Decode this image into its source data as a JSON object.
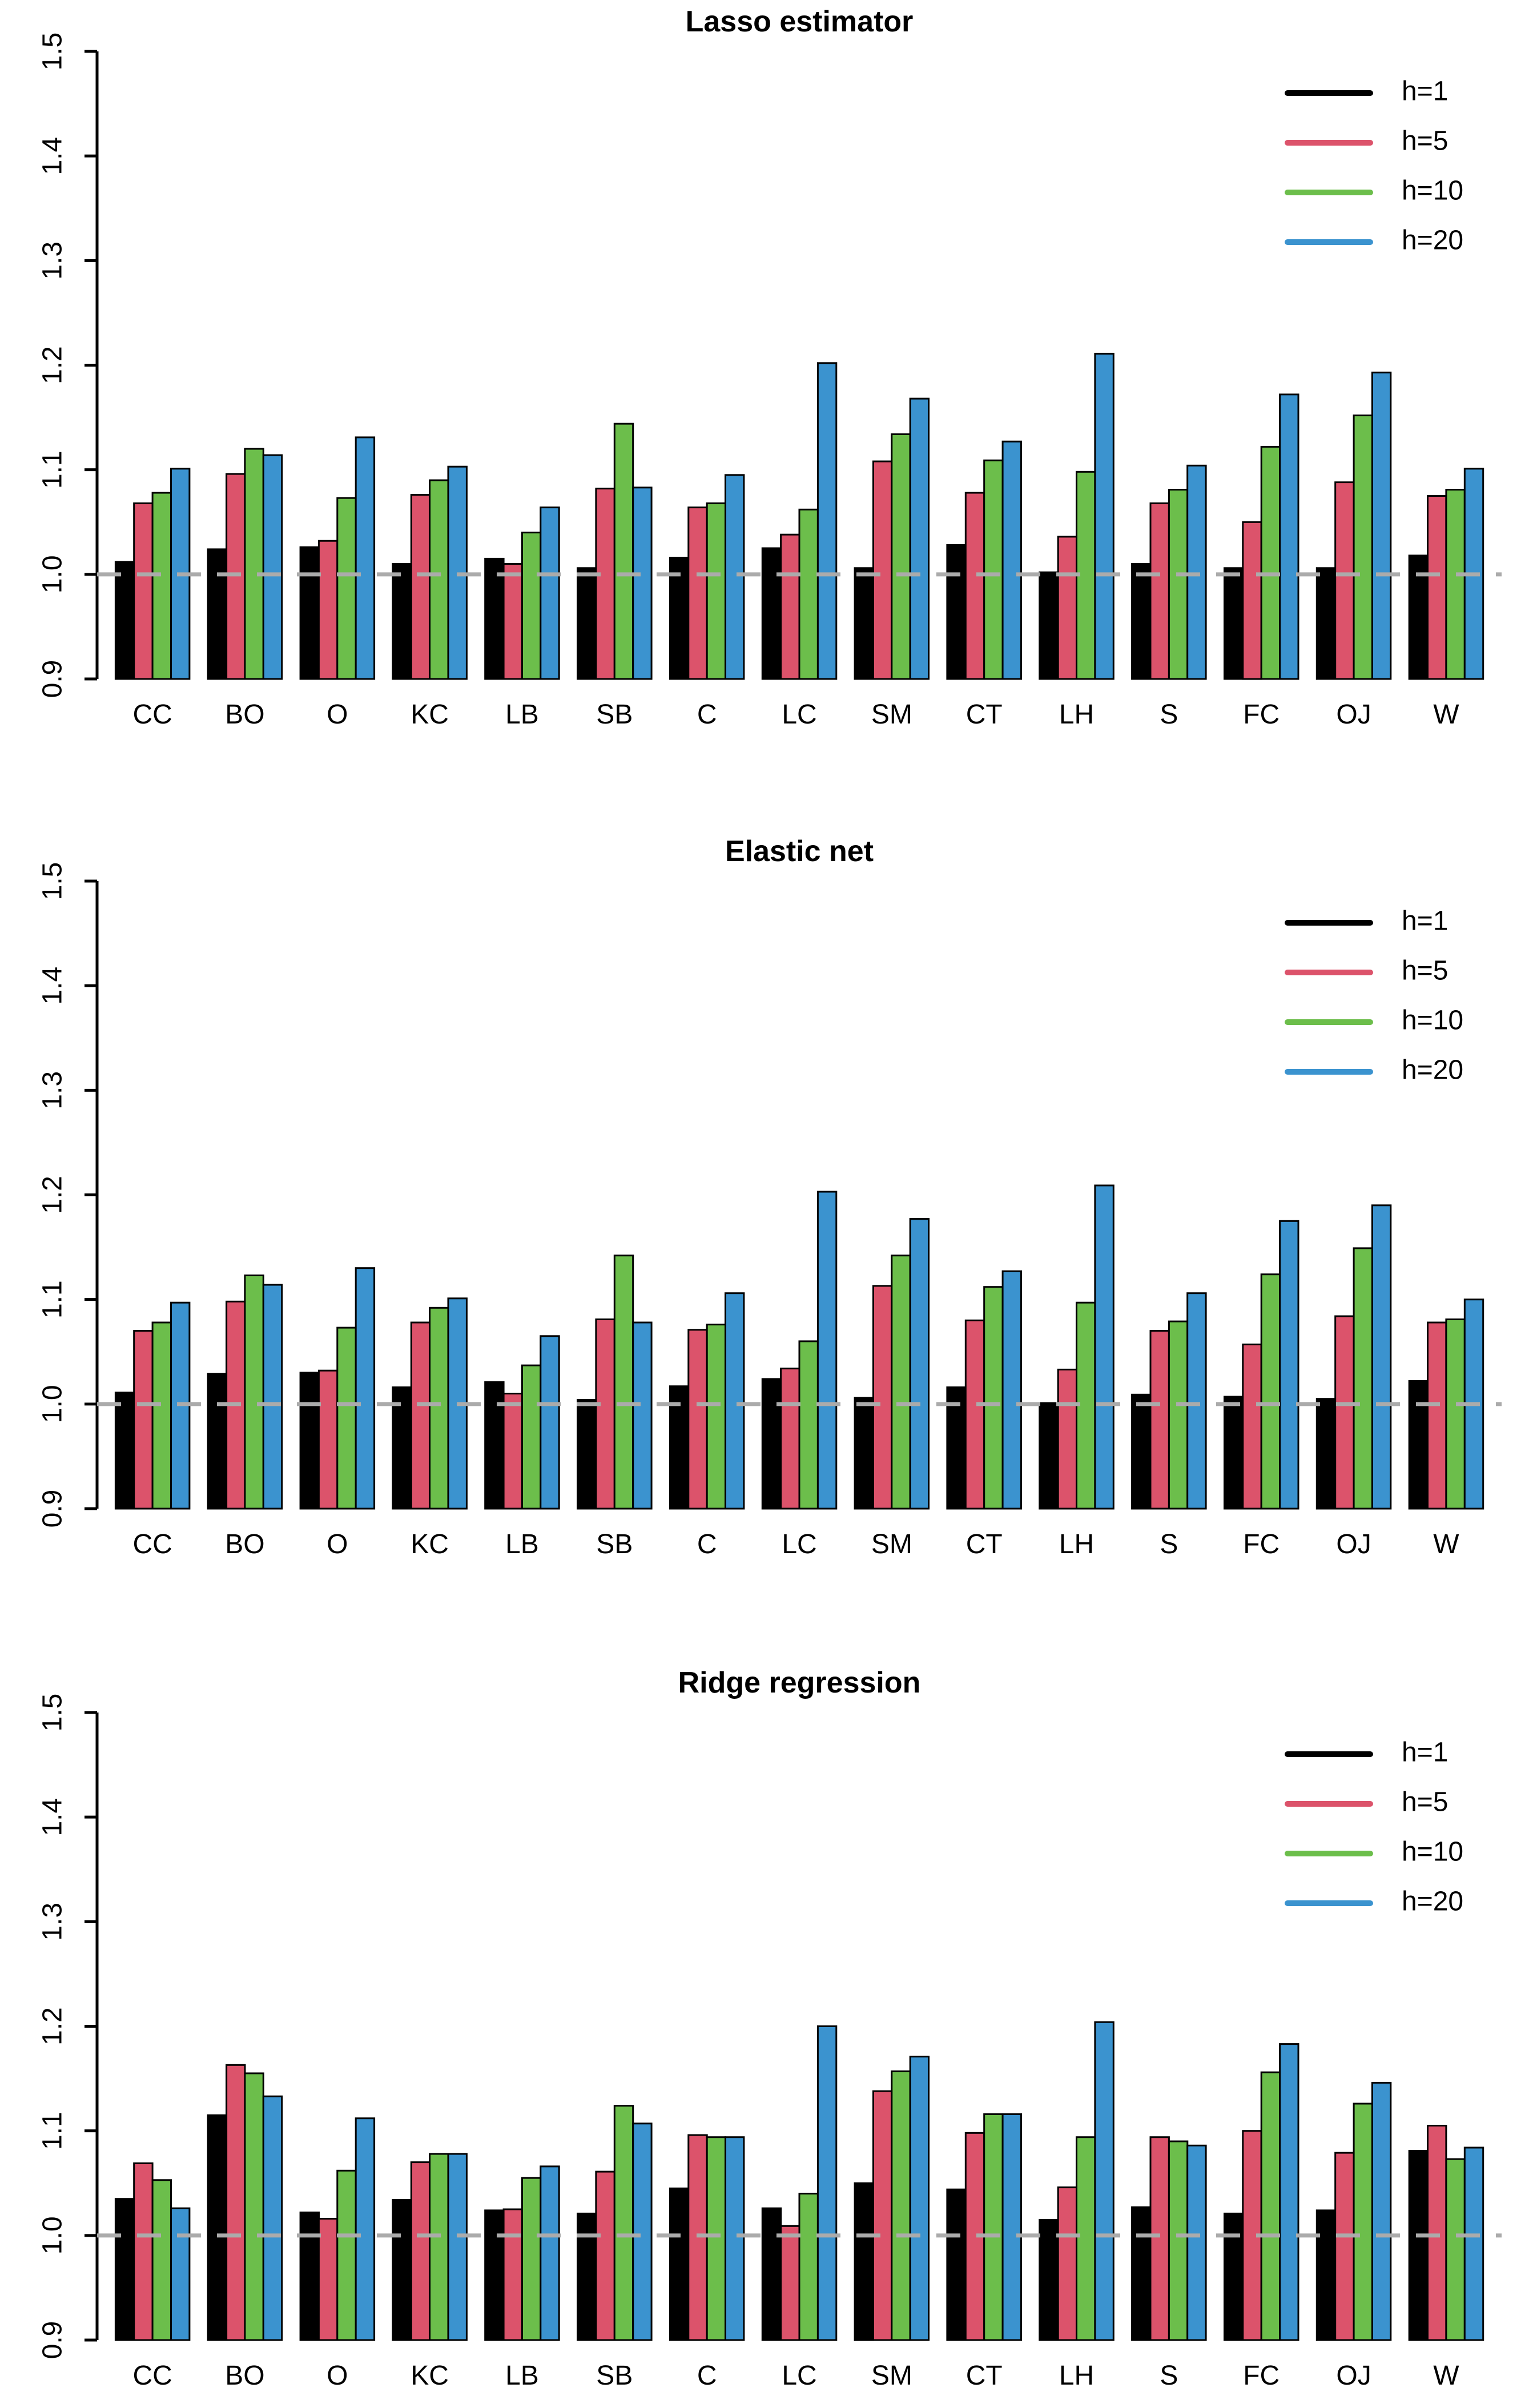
{
  "figure": {
    "type": "three stacked grouped bar charts (R base graphics style)",
    "background": "#ffffff",
    "baseline_note": "gray dashed horizontal reference line at y=1.0 drawn over bars"
  },
  "colors": {
    "h1": "#000000",
    "h5": "#DC536B",
    "h10": "#6CBE4B",
    "h20": "#3B93CF",
    "dashed_line": "#ABABAB",
    "axis": "#000000"
  },
  "chart_data": [
    {
      "type": "bar",
      "title": "Lasso estimator",
      "categories": [
        "CC",
        "BO",
        "O",
        "KC",
        "LB",
        "SB",
        "C",
        "LC",
        "SM",
        "CT",
        "LH",
        "S",
        "FC",
        "OJ",
        "W"
      ],
      "series": [
        {
          "name": "h=1",
          "color": "#000000",
          "values": [
            1.012,
            1.024,
            1.026,
            1.01,
            1.015,
            1.006,
            1.016,
            1.025,
            1.006,
            1.028,
            1.002,
            1.01,
            1.006,
            1.006,
            1.018
          ]
        },
        {
          "name": "h=5",
          "color": "#DC536B",
          "values": [
            1.068,
            1.096,
            1.032,
            1.076,
            1.01,
            1.082,
            1.064,
            1.038,
            1.108,
            1.078,
            1.036,
            1.068,
            1.05,
            1.088,
            1.075
          ]
        },
        {
          "name": "h=10",
          "color": "#6CBE4B",
          "values": [
            1.078,
            1.12,
            1.073,
            1.09,
            1.04,
            1.144,
            1.068,
            1.062,
            1.134,
            1.109,
            1.098,
            1.081,
            1.122,
            1.152,
            1.081
          ]
        },
        {
          "name": "h=20",
          "color": "#3B93CF",
          "values": [
            1.101,
            1.114,
            1.131,
            1.103,
            1.064,
            1.083,
            1.095,
            1.202,
            1.168,
            1.127,
            1.211,
            1.104,
            1.172,
            1.193,
            1.101
          ]
        }
      ],
      "ylim": [
        0.9,
        1.5
      ],
      "yticks": [
        "0.9",
        "1.0",
        "1.1",
        "1.2",
        "1.3",
        "1.4",
        "1.5"
      ],
      "baseline": 1.0,
      "legend_position": "top-right",
      "grid": "off"
    },
    {
      "type": "bar",
      "title": "Elastic net",
      "categories": [
        "CC",
        "BO",
        "O",
        "KC",
        "LB",
        "SB",
        "C",
        "LC",
        "SM",
        "CT",
        "LH",
        "S",
        "FC",
        "OJ",
        "W"
      ],
      "series": [
        {
          "name": "h=1",
          "color": "#000000",
          "values": [
            1.011,
            1.029,
            1.03,
            1.016,
            1.021,
            1.004,
            1.017,
            1.024,
            1.006,
            1.016,
            1.001,
            1.009,
            1.007,
            1.005,
            1.022
          ]
        },
        {
          "name": "h=5",
          "color": "#DC536B",
          "values": [
            1.07,
            1.098,
            1.032,
            1.078,
            1.01,
            1.081,
            1.071,
            1.034,
            1.113,
            1.08,
            1.033,
            1.07,
            1.057,
            1.084,
            1.078
          ]
        },
        {
          "name": "h=10",
          "color": "#6CBE4B",
          "values": [
            1.078,
            1.123,
            1.073,
            1.092,
            1.037,
            1.142,
            1.076,
            1.06,
            1.142,
            1.112,
            1.097,
            1.079,
            1.124,
            1.149,
            1.081
          ]
        },
        {
          "name": "h=20",
          "color": "#3B93CF",
          "values": [
            1.097,
            1.114,
            1.13,
            1.101,
            1.065,
            1.078,
            1.106,
            1.203,
            1.177,
            1.127,
            1.209,
            1.106,
            1.175,
            1.19,
            1.1
          ]
        }
      ],
      "ylim": [
        0.9,
        1.5
      ],
      "yticks": [
        "0.9",
        "1.0",
        "1.1",
        "1.2",
        "1.3",
        "1.4",
        "1.5"
      ],
      "baseline": 1.0,
      "legend_position": "top-right",
      "grid": "off"
    },
    {
      "type": "bar",
      "title": "Ridge regression",
      "categories": [
        "CC",
        "BO",
        "O",
        "KC",
        "LB",
        "SB",
        "C",
        "LC",
        "SM",
        "CT",
        "LH",
        "S",
        "FC",
        "OJ",
        "W"
      ],
      "series": [
        {
          "name": "h=1",
          "color": "#000000",
          "values": [
            1.035,
            1.115,
            1.022,
            1.034,
            1.024,
            1.021,
            1.045,
            1.026,
            1.05,
            1.044,
            1.015,
            1.027,
            1.021,
            1.024,
            1.081
          ]
        },
        {
          "name": "h=5",
          "color": "#DC536B",
          "values": [
            1.069,
            1.163,
            1.016,
            1.07,
            1.025,
            1.061,
            1.096,
            1.009,
            1.138,
            1.098,
            1.046,
            1.094,
            1.1,
            1.079,
            1.105
          ]
        },
        {
          "name": "h=10",
          "color": "#6CBE4B",
          "values": [
            1.053,
            1.155,
            1.062,
            1.078,
            1.055,
            1.124,
            1.094,
            1.04,
            1.157,
            1.116,
            1.094,
            1.09,
            1.156,
            1.126,
            1.073
          ]
        },
        {
          "name": "h=20",
          "color": "#3B93CF",
          "values": [
            1.026,
            1.133,
            1.112,
            1.078,
            1.066,
            1.107,
            1.094,
            1.2,
            1.171,
            1.116,
            1.204,
            1.086,
            1.183,
            1.146,
            1.084
          ]
        }
      ],
      "ylim": [
        0.9,
        1.5
      ],
      "yticks": [
        "0.9",
        "1.0",
        "1.1",
        "1.2",
        "1.3",
        "1.4",
        "1.5"
      ],
      "baseline": 1.0,
      "legend_position": "top-right",
      "grid": "off"
    }
  ],
  "legend": {
    "items": [
      {
        "label": "h=1",
        "color": "#000000"
      },
      {
        "label": "h=5",
        "color": "#DC536B"
      },
      {
        "label": "h=10",
        "color": "#6CBE4B"
      },
      {
        "label": "h=20",
        "color": "#3B93CF"
      }
    ]
  }
}
